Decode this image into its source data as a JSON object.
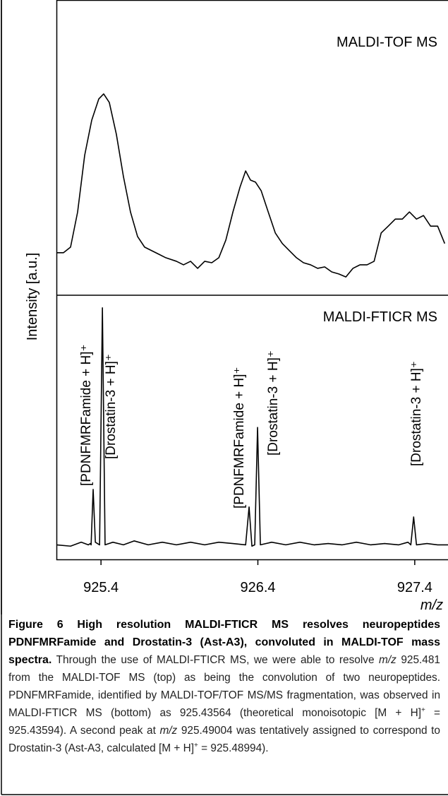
{
  "chart_data": [
    {
      "type": "line",
      "title": "MALDI-TOF MS",
      "ylabel": "Intensity [a.u.]",
      "xlim": [
        925.116,
        927.612
      ],
      "ylim": [
        0,
        100
      ],
      "color": "#000000",
      "x": [
        925.116,
        925.161,
        925.206,
        925.251,
        925.296,
        925.341,
        925.386,
        925.417,
        925.453,
        925.498,
        925.543,
        925.588,
        925.633,
        925.678,
        925.723,
        925.768,
        925.813,
        925.881,
        925.926,
        925.971,
        926.016,
        926.061,
        926.106,
        926.151,
        926.196,
        926.241,
        926.286,
        926.322,
        926.353,
        926.385,
        926.421,
        926.466,
        926.511,
        926.556,
        926.601,
        926.646,
        926.691,
        926.736,
        926.781,
        926.826,
        926.871,
        926.916,
        926.961,
        927.006,
        927.051,
        927.096,
        927.141,
        927.186,
        927.231,
        927.276,
        927.321,
        927.366,
        927.411,
        927.456,
        927.501,
        927.546,
        927.591
      ],
      "values": [
        14.4,
        14.4,
        16.3,
        28.2,
        47.4,
        59.3,
        66.5,
        68.2,
        65.3,
        54.5,
        40.2,
        28.2,
        19.9,
        16.3,
        15.1,
        13.9,
        12.7,
        11.5,
        10.3,
        11.5,
        9.1,
        11.5,
        11.0,
        12.7,
        18.7,
        28.2,
        36.6,
        42.1,
        39.0,
        38.3,
        35.4,
        28.2,
        21.1,
        17.5,
        15.1,
        12.7,
        11.0,
        10.3,
        9.1,
        9.6,
        7.9,
        7.2,
        6.2,
        9.1,
        10.3,
        10.3,
        11.5,
        21.1,
        23.4,
        25.8,
        25.8,
        28.2,
        25.8,
        27.0,
        23.4,
        23.4,
        17.5
      ]
    },
    {
      "type": "line",
      "title": "MALDI-FTICR MS",
      "xlabel": "m/z",
      "xlim": [
        925.116,
        927.612
      ],
      "ylim": [
        0,
        100
      ],
      "color": "#000000",
      "xticks": [
        925.4,
        926.4,
        927.4
      ],
      "x": [
        925.116,
        925.206,
        925.274,
        925.319,
        925.332,
        925.337,
        925.35,
        925.364,
        925.391,
        925.409,
        925.426,
        925.476,
        925.543,
        925.611,
        925.701,
        925.791,
        925.881,
        925.971,
        926.061,
        926.151,
        926.241,
        926.322,
        926.344,
        926.362,
        926.38,
        926.398,
        926.416,
        926.488,
        926.578,
        926.668,
        926.758,
        926.848,
        926.938,
        927.028,
        927.118,
        927.208,
        927.298,
        927.357,
        927.375,
        927.393,
        927.411,
        927.478,
        927.546,
        927.612
      ],
      "values": [
        5,
        4.5,
        6,
        5,
        5.5,
        5,
        26.1,
        6,
        5,
        95.2,
        5,
        6,
        5,
        6.5,
        5,
        6,
        5,
        6,
        5,
        6,
        5.5,
        5,
        19.4,
        4.5,
        5,
        49.7,
        5,
        6,
        5,
        6,
        5,
        5.5,
        5,
        6,
        5,
        5.5,
        5,
        6,
        5,
        15.6,
        5,
        5.5,
        5,
        5
      ],
      "annotations": [
        "[PDNFMRFamide + H]⁺",
        "[Drostatin-3 + H]⁺",
        "[PDNFMRFamide + H]⁺",
        "[Drostatin-3 + H]⁺",
        "[Drostatin-3 + H]⁺"
      ]
    }
  ],
  "caption": {
    "label": "Figure 6",
    "title": "High resolution MALDI-FTICR MS resolves neuropeptides PDNFMRFamide and Drostatin-3 (Ast-A3), convoluted in MALDI-TOF mass spectra.",
    "body": [
      "Through the use of MALDI-FTICR MS, we were able to resolve ",
      {
        "text": "m/z",
        "style": "italic"
      },
      " 925.481 from the MALDI-TOF MS (top) as being the convolution of two neuropeptides. PDNFMRFamide, identified by MALDI-TOF/TOF MS/MS fragmentation, was observed in MALDI-FTICR MS (bottom) as 925.43564 (theoretical monoisotopic [M + H]",
      {
        "text": "+",
        "style": "sup"
      },
      " = 925.43594). A second peak at ",
      {
        "text": "m/z",
        "style": "italic"
      },
      " 925.49004 was tentatively assigned to correspond to Drostatin-3 (Ast-A3, calculated [M + H]",
      {
        "text": "+",
        "style": "sup"
      },
      " = 925.48994)."
    ]
  }
}
